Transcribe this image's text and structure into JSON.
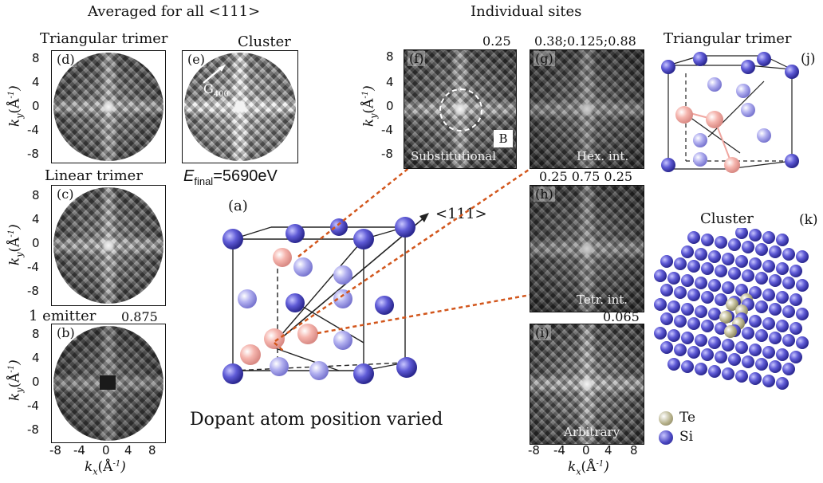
{
  "headers": {
    "averaged": "Averaged for all <111>",
    "individual": "Individual sites"
  },
  "panels": {
    "d": {
      "letter": "(d)",
      "title": "Triangular trimer"
    },
    "e": {
      "letter": "(e)",
      "title": "Cluster",
      "g_label": "G",
      "g_sub": "400"
    },
    "c": {
      "letter": "(c)",
      "title": "Linear trimer"
    },
    "b": {
      "letter": "(b)",
      "title": "1 emitter",
      "value": "0.875"
    },
    "f": {
      "letter": "(f)",
      "value": "0.25",
      "label": "Substitutional",
      "box": "B"
    },
    "g": {
      "letter": "(g)",
      "value": "0.38;0.125;0.88",
      "label": "Hex. int."
    },
    "h": {
      "letter": "(h)",
      "value": "0.25  0.75  0.25",
      "label": "Tetr. int."
    },
    "i": {
      "letter": "(i)",
      "value": "0.065",
      "label": "Arbitrary"
    },
    "j": {
      "letter": "(j)",
      "title": "Triangular trimer"
    },
    "k": {
      "letter": "(k)",
      "title": "Cluster"
    },
    "a": {
      "letter": "(a)",
      "direction": "<111>",
      "caption": "Dopant atom position varied"
    }
  },
  "efinal": {
    "prefix": "E",
    "sub": "final",
    "value": "=5690eV"
  },
  "axes": {
    "y_ticks": [
      "8",
      "4",
      "0",
      "-4",
      "-8"
    ],
    "x_ticks": [
      "-8",
      "-4",
      "0",
      "4",
      "8"
    ],
    "ylabel": "k",
    "ylabel_sub": "y",
    "ylabel_unit": "(Å",
    "xlabel": "k",
    "xlabel_sub": "x",
    "xlabel_unit": "(Å"
  },
  "legend": [
    {
      "label": "Te",
      "color": "#b5b089"
    },
    {
      "label": "Si",
      "color": "#4a47c2"
    }
  ],
  "colors": {
    "si": "#4a47c2",
    "dopant": "#f0a6a0",
    "te": "#b5b089",
    "dash": "#d2561c"
  }
}
